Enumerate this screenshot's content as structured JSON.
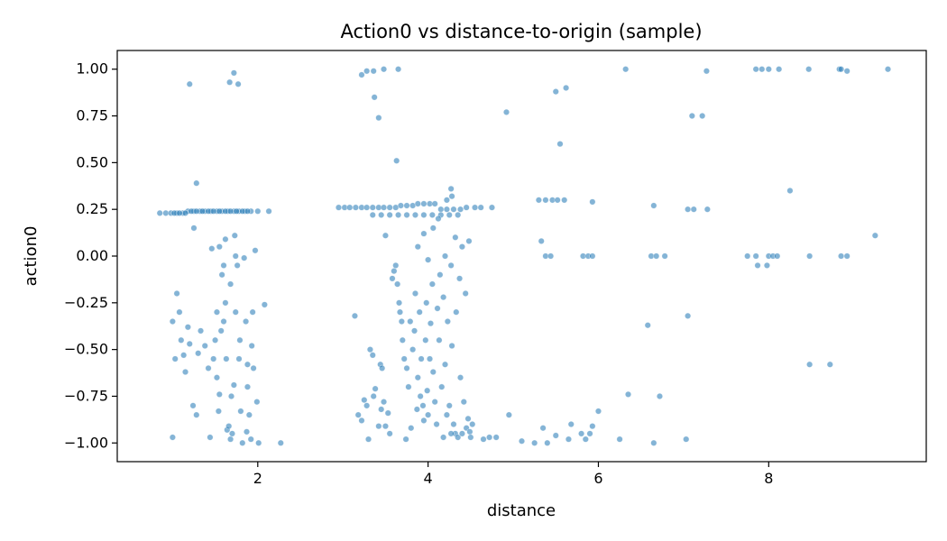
{
  "chart_data": {
    "type": "scatter",
    "title": "Action0 vs distance-to-origin (sample)",
    "xlabel": "distance",
    "ylabel": "action0",
    "xlim": [
      0.35,
      9.85
    ],
    "ylim": [
      -1.1,
      1.1
    ],
    "xticks": [
      2,
      4,
      6,
      8
    ],
    "yticks": [
      -1.0,
      -0.75,
      -0.5,
      -0.25,
      0.0,
      0.25,
      0.5,
      0.75,
      1.0
    ],
    "xtick_labels": [
      "2",
      "4",
      "6",
      "8"
    ],
    "ytick_labels": [
      "−1.00",
      "−0.75",
      "−0.50",
      "−0.25",
      "0.00",
      "0.25",
      "0.50",
      "0.75",
      "1.00"
    ],
    "grid": false,
    "legend": "none",
    "colors": {
      "marker_fill": "#1f77b4",
      "marker_edge": "#ffffff",
      "axes": "#000000"
    },
    "marker_alpha": 0.55,
    "series": [
      {
        "points": [
          [
            1.2,
            0.92
          ],
          [
            1.72,
            0.98
          ],
          [
            1.77,
            0.92
          ],
          [
            1.67,
            0.93
          ],
          [
            1.28,
            0.39
          ],
          [
            1.05,
            -0.2
          ],
          [
            1.0,
            -0.35
          ],
          [
            1.03,
            -0.55
          ],
          [
            1.08,
            -0.3
          ],
          [
            1.1,
            -0.45
          ],
          [
            1.13,
            -0.53
          ],
          [
            1.18,
            -0.38
          ],
          [
            1.2,
            -0.47
          ],
          [
            1.24,
            -0.8
          ],
          [
            1.28,
            -0.85
          ],
          [
            1.0,
            -0.97
          ],
          [
            1.15,
            -0.62
          ],
          [
            1.33,
            -0.4
          ],
          [
            1.38,
            -0.48
          ],
          [
            1.42,
            -0.6
          ],
          [
            1.44,
            -0.97
          ],
          [
            1.48,
            -0.55
          ],
          [
            1.5,
            -0.45
          ],
          [
            1.52,
            -0.3
          ],
          [
            1.52,
            -0.65
          ],
          [
            1.55,
            -0.74
          ],
          [
            1.57,
            -0.4
          ],
          [
            1.58,
            -0.1
          ],
          [
            1.6,
            -0.05
          ],
          [
            1.62,
            -0.25
          ],
          [
            1.6,
            -0.35
          ],
          [
            1.63,
            -0.55
          ],
          [
            1.64,
            -0.93
          ],
          [
            1.66,
            -0.91
          ],
          [
            1.68,
            -0.98
          ],
          [
            1.7,
            -0.95
          ],
          [
            1.72,
            -0.69
          ],
          [
            1.74,
            -0.3
          ],
          [
            1.76,
            -0.05
          ],
          [
            1.78,
            -0.55
          ],
          [
            1.8,
            -0.83
          ],
          [
            1.82,
            -1.0
          ],
          [
            1.84,
            -0.01
          ],
          [
            1.86,
            -0.35
          ],
          [
            1.88,
            -0.7
          ],
          [
            1.9,
            -0.85
          ],
          [
            1.92,
            -0.98
          ],
          [
            1.94,
            -0.3
          ],
          [
            1.97,
            0.03
          ],
          [
            1.99,
            -0.78
          ],
          [
            2.01,
            -1.0
          ],
          [
            1.93,
            -0.48
          ],
          [
            1.88,
            -0.58
          ],
          [
            1.95,
            -0.6
          ],
          [
            1.62,
            0.09
          ],
          [
            1.73,
            0.11
          ],
          [
            1.55,
            0.05
          ],
          [
            1.46,
            0.04
          ],
          [
            1.25,
            0.15
          ],
          [
            1.69,
            -0.75
          ],
          [
            1.54,
            -0.83
          ],
          [
            1.79,
            -0.45
          ],
          [
            1.87,
            -0.94
          ],
          [
            1.3,
            -0.52
          ],
          [
            2.08,
            -0.26
          ],
          [
            2.27,
            -1.0
          ],
          [
            1.68,
            -0.15
          ],
          [
            1.74,
            0.0
          ],
          [
            0.85,
            0.23
          ],
          [
            0.92,
            0.23
          ],
          [
            0.98,
            0.23
          ],
          [
            1.05,
            0.23
          ],
          [
            1.12,
            0.23
          ],
          [
            1.18,
            0.24
          ],
          [
            1.25,
            0.24
          ],
          [
            1.32,
            0.24
          ],
          [
            1.38,
            0.24
          ],
          [
            1.45,
            0.24
          ],
          [
            1.52,
            0.24
          ],
          [
            1.58,
            0.24
          ],
          [
            1.65,
            0.24
          ],
          [
            1.72,
            0.24
          ],
          [
            1.78,
            0.24
          ],
          [
            1.85,
            0.24
          ],
          [
            1.92,
            0.24
          ],
          [
            2.0,
            0.24
          ],
          [
            2.13,
            0.24
          ],
          [
            1.02,
            0.23
          ],
          [
            1.08,
            0.23
          ],
          [
            1.15,
            0.23
          ],
          [
            1.22,
            0.24
          ],
          [
            1.28,
            0.24
          ],
          [
            1.35,
            0.24
          ],
          [
            1.42,
            0.24
          ],
          [
            1.48,
            0.24
          ],
          [
            1.55,
            0.24
          ],
          [
            1.62,
            0.24
          ],
          [
            1.68,
            0.24
          ],
          [
            1.75,
            0.24
          ],
          [
            1.82,
            0.24
          ],
          [
            1.88,
            0.24
          ],
          [
            3.22,
            0.97
          ],
          [
            3.28,
            0.99
          ],
          [
            3.37,
            0.85
          ],
          [
            3.42,
            0.74
          ],
          [
            3.36,
            0.99
          ],
          [
            3.48,
            1.0
          ],
          [
            3.65,
            1.0
          ],
          [
            3.63,
            0.51
          ],
          [
            2.95,
            0.26
          ],
          [
            3.02,
            0.26
          ],
          [
            3.08,
            0.26
          ],
          [
            3.15,
            0.26
          ],
          [
            3.22,
            0.26
          ],
          [
            3.28,
            0.26
          ],
          [
            3.35,
            0.26
          ],
          [
            3.42,
            0.26
          ],
          [
            3.48,
            0.26
          ],
          [
            3.55,
            0.26
          ],
          [
            3.62,
            0.26
          ],
          [
            3.68,
            0.27
          ],
          [
            3.75,
            0.27
          ],
          [
            3.82,
            0.27
          ],
          [
            3.88,
            0.28
          ],
          [
            3.95,
            0.28
          ],
          [
            4.02,
            0.28
          ],
          [
            4.08,
            0.28
          ],
          [
            4.15,
            0.25
          ],
          [
            4.22,
            0.25
          ],
          [
            4.3,
            0.25
          ],
          [
            4.38,
            0.25
          ],
          [
            4.45,
            0.26
          ],
          [
            4.55,
            0.26
          ],
          [
            4.62,
            0.26
          ],
          [
            4.75,
            0.26
          ],
          [
            3.35,
            0.22
          ],
          [
            3.45,
            0.22
          ],
          [
            3.55,
            0.22
          ],
          [
            3.65,
            0.22
          ],
          [
            3.75,
            0.22
          ],
          [
            3.85,
            0.22
          ],
          [
            3.95,
            0.22
          ],
          [
            4.05,
            0.22
          ],
          [
            4.15,
            0.22
          ],
          [
            4.25,
            0.22
          ],
          [
            4.35,
            0.22
          ],
          [
            3.5,
            0.11
          ],
          [
            4.28,
            0.32
          ],
          [
            4.27,
            0.36
          ],
          [
            4.22,
            0.3
          ],
          [
            3.14,
            -0.32
          ],
          [
            3.18,
            -0.85
          ],
          [
            3.22,
            -0.88
          ],
          [
            3.25,
            -0.77
          ],
          [
            3.28,
            -0.8
          ],
          [
            3.3,
            -0.98
          ],
          [
            3.32,
            -0.5
          ],
          [
            3.35,
            -0.53
          ],
          [
            3.36,
            -0.75
          ],
          [
            3.38,
            -0.71
          ],
          [
            3.42,
            -0.91
          ],
          [
            3.44,
            -0.58
          ],
          [
            3.45,
            -0.82
          ],
          [
            3.46,
            -0.6
          ],
          [
            3.48,
            -0.78
          ],
          [
            3.5,
            -0.91
          ],
          [
            3.53,
            -0.84
          ],
          [
            3.55,
            -0.95
          ],
          [
            3.58,
            -0.12
          ],
          [
            3.6,
            -0.08
          ],
          [
            3.62,
            -0.05
          ],
          [
            3.64,
            -0.15
          ],
          [
            3.66,
            -0.25
          ],
          [
            3.67,
            -0.3
          ],
          [
            3.69,
            -0.35
          ],
          [
            3.7,
            -0.45
          ],
          [
            3.72,
            -0.55
          ],
          [
            3.74,
            -0.98
          ],
          [
            3.75,
            -0.6
          ],
          [
            3.77,
            -0.7
          ],
          [
            3.79,
            -0.35
          ],
          [
            3.8,
            -0.92
          ],
          [
            3.82,
            -0.5
          ],
          [
            3.84,
            -0.4
          ],
          [
            3.85,
            -0.2
          ],
          [
            3.87,
            -0.82
          ],
          [
            3.88,
            -0.65
          ],
          [
            3.9,
            -0.3
          ],
          [
            3.91,
            -0.75
          ],
          [
            3.92,
            -0.55
          ],
          [
            3.94,
            -0.8
          ],
          [
            3.95,
            -0.88
          ],
          [
            3.97,
            -0.45
          ],
          [
            3.98,
            -0.25
          ],
          [
            3.99,
            -0.72
          ],
          [
            4.0,
            -0.85
          ],
          [
            4.02,
            -0.55
          ],
          [
            4.03,
            -0.36
          ],
          [
            4.05,
            -0.15
          ],
          [
            4.06,
            -0.62
          ],
          [
            4.08,
            -0.78
          ],
          [
            4.1,
            -0.9
          ],
          [
            4.11,
            -0.28
          ],
          [
            4.13,
            -0.45
          ],
          [
            4.14,
            -0.1
          ],
          [
            4.16,
            -0.7
          ],
          [
            4.18,
            -0.22
          ],
          [
            4.2,
            -0.58
          ],
          [
            4.22,
            -0.85
          ],
          [
            4.23,
            -0.35
          ],
          [
            4.25,
            -0.8
          ],
          [
            4.27,
            -0.05
          ],
          [
            4.28,
            -0.48
          ],
          [
            4.3,
            -0.9
          ],
          [
            4.32,
            -0.95
          ],
          [
            4.33,
            -0.3
          ],
          [
            4.35,
            -0.97
          ],
          [
            4.37,
            -0.12
          ],
          [
            4.38,
            -0.65
          ],
          [
            4.4,
            -0.95
          ],
          [
            4.42,
            -0.78
          ],
          [
            4.44,
            -0.2
          ],
          [
            4.45,
            -0.92
          ],
          [
            4.47,
            -0.87
          ],
          [
            4.49,
            -0.94
          ],
          [
            4.5,
            -0.97
          ],
          [
            4.52,
            -0.9
          ],
          [
            4.18,
            -0.97
          ],
          [
            4.27,
            -0.95
          ],
          [
            4.32,
            0.1
          ],
          [
            4.4,
            0.05
          ],
          [
            4.12,
            0.2
          ],
          [
            4.06,
            0.15
          ],
          [
            4.2,
            0.0
          ],
          [
            3.95,
            0.12
          ],
          [
            4.0,
            -0.02
          ],
          [
            3.88,
            0.05
          ],
          [
            4.48,
            0.08
          ],
          [
            4.72,
            -0.97
          ],
          [
            4.65,
            -0.98
          ],
          [
            4.8,
            -0.97
          ],
          [
            4.95,
            -0.85
          ],
          [
            5.1,
            -0.99
          ],
          [
            5.25,
            -1.0
          ],
          [
            5.35,
            -0.92
          ],
          [
            5.4,
            -1.0
          ],
          [
            5.5,
            -0.96
          ],
          [
            5.65,
            -0.98
          ],
          [
            5.68,
            -0.9
          ],
          [
            5.8,
            -0.95
          ],
          [
            5.85,
            -0.98
          ],
          [
            5.9,
            -0.95
          ],
          [
            5.93,
            -0.91
          ],
          [
            6.0,
            -0.83
          ],
          [
            6.25,
            -0.98
          ],
          [
            6.35,
            -0.74
          ],
          [
            6.65,
            -1.0
          ],
          [
            6.72,
            -0.75
          ],
          [
            7.03,
            -0.98
          ],
          [
            6.58,
            -0.37
          ],
          [
            7.05,
            -0.32
          ],
          [
            4.92,
            0.77
          ],
          [
            5.5,
            0.88
          ],
          [
            5.62,
            0.9
          ],
          [
            5.55,
            0.6
          ],
          [
            6.32,
            1.0
          ],
          [
            7.1,
            0.75
          ],
          [
            7.22,
            0.75
          ],
          [
            7.27,
            0.99
          ],
          [
            5.3,
            0.3
          ],
          [
            5.38,
            0.3
          ],
          [
            5.46,
            0.3
          ],
          [
            5.52,
            0.3
          ],
          [
            5.6,
            0.3
          ],
          [
            5.93,
            0.29
          ],
          [
            6.65,
            0.27
          ],
          [
            7.05,
            0.25
          ],
          [
            7.12,
            0.25
          ],
          [
            7.28,
            0.25
          ],
          [
            5.33,
            0.08
          ],
          [
            5.38,
            0.0
          ],
          [
            5.44,
            0.0
          ],
          [
            5.82,
            0.0
          ],
          [
            5.88,
            0.0
          ],
          [
            5.93,
            0.0
          ],
          [
            6.62,
            0.0
          ],
          [
            6.68,
            0.0
          ],
          [
            6.78,
            0.0
          ],
          [
            7.75,
            0.0
          ],
          [
            7.85,
            0.0
          ],
          [
            8.0,
            0.0
          ],
          [
            8.05,
            0.0
          ],
          [
            8.1,
            0.0
          ],
          [
            8.48,
            0.0
          ],
          [
            8.85,
            0.0
          ],
          [
            8.92,
            0.0
          ],
          [
            7.87,
            -0.05
          ],
          [
            7.98,
            -0.05
          ],
          [
            8.25,
            0.35
          ],
          [
            9.25,
            0.11
          ],
          [
            7.85,
            1.0
          ],
          [
            7.92,
            1.0
          ],
          [
            8.0,
            1.0
          ],
          [
            8.12,
            1.0
          ],
          [
            8.47,
            1.0
          ],
          [
            8.83,
            1.0
          ],
          [
            8.85,
            1.0
          ],
          [
            8.92,
            0.99
          ],
          [
            9.4,
            1.0
          ],
          [
            8.48,
            -0.58
          ],
          [
            8.72,
            -0.58
          ]
        ]
      }
    ]
  }
}
